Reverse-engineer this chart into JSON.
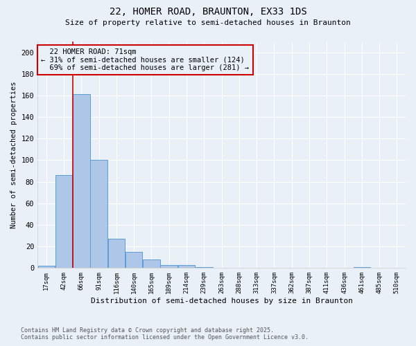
{
  "title1": "22, HOMER ROAD, BRAUNTON, EX33 1DS",
  "title2": "Size of property relative to semi-detached houses in Braunton",
  "xlabel": "Distribution of semi-detached houses by size in Braunton",
  "ylabel": "Number of semi-detached properties",
  "footnote": "Contains HM Land Registry data © Crown copyright and database right 2025.\nContains public sector information licensed under the Open Government Licence v3.0.",
  "bin_labels": [
    "17sqm",
    "42sqm",
    "66sqm",
    "91sqm",
    "116sqm",
    "140sqm",
    "165sqm",
    "189sqm",
    "214sqm",
    "239sqm",
    "263sqm",
    "288sqm",
    "313sqm",
    "337sqm",
    "362sqm",
    "387sqm",
    "411sqm",
    "436sqm",
    "461sqm",
    "485sqm",
    "510sqm"
  ],
  "bar_heights": [
    2,
    86,
    161,
    100,
    27,
    15,
    8,
    3,
    3,
    1,
    0,
    0,
    0,
    0,
    0,
    0,
    0,
    0,
    1,
    0,
    0
  ],
  "bar_color": "#aec6e8",
  "bar_edge_color": "#5a9ed4",
  "background_color": "#eaf0f8",
  "grid_color": "#ffffff",
  "property_size": 71,
  "property_label": "22 HOMER ROAD: 71sqm",
  "pct_smaller": 31,
  "pct_larger": 69,
  "n_smaller": 124,
  "n_larger": 281,
  "red_line_color": "#cc0000",
  "ylim": [
    0,
    210
  ],
  "yticks": [
    0,
    20,
    40,
    60,
    80,
    100,
    120,
    140,
    160,
    180,
    200
  ]
}
